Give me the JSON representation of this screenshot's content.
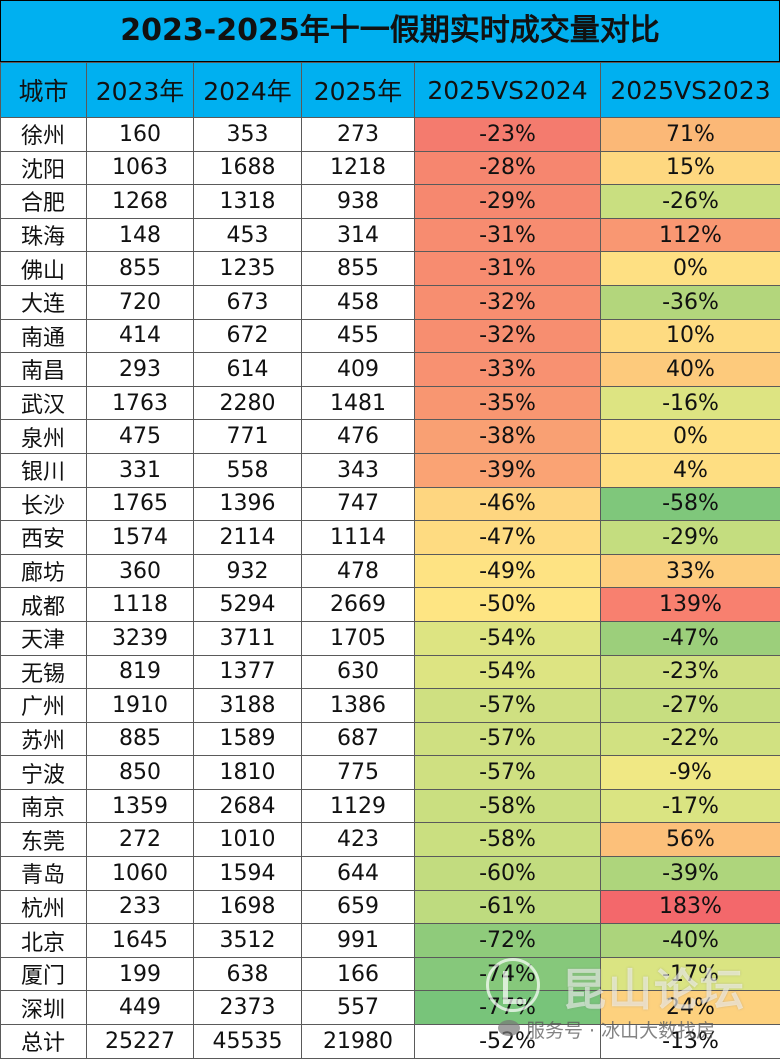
{
  "title": "2023-2025年十一假期实时成交量对比",
  "headers": [
    "城市",
    "2023年",
    "2024年",
    "2025年",
    "2025VS2024",
    "2025VS2023"
  ],
  "rows": [
    {
      "city": "徐州",
      "y2023": "160",
      "y2024": "353",
      "y2025": "273",
      "vs2024": "-23%",
      "vs2023": "71%",
      "c2024": "#f47b6e",
      "c2023": "#fbb877"
    },
    {
      "city": "沈阳",
      "y2023": "1063",
      "y2024": "1688",
      "y2025": "1218",
      "vs2024": "-28%",
      "vs2023": "15%",
      "c2024": "#f6866f",
      "c2023": "#fed880"
    },
    {
      "city": "合肥",
      "y2023": "1268",
      "y2024": "1318",
      "y2025": "938",
      "vs2024": "-29%",
      "vs2023": "-26%",
      "c2024": "#f6886f",
      "c2023": "#c9df80"
    },
    {
      "city": "珠海",
      "y2023": "148",
      "y2024": "453",
      "y2025": "314",
      "vs2024": "-31%",
      "vs2023": "112%",
      "c2024": "#f78c70",
      "c2023": "#f99772"
    },
    {
      "city": "佛山",
      "y2023": "855",
      "y2024": "1235",
      "y2025": "855",
      "vs2024": "-31%",
      "vs2023": "0%",
      "c2024": "#f78c70",
      "c2023": "#fee083"
    },
    {
      "city": "大连",
      "y2023": "720",
      "y2024": "673",
      "y2025": "458",
      "vs2024": "-32%",
      "vs2023": "-36%",
      "c2024": "#f78e70",
      "c2023": "#b3d67c"
    },
    {
      "city": "南通",
      "y2023": "414",
      "y2024": "672",
      "y2025": "455",
      "vs2024": "-32%",
      "vs2023": "10%",
      "c2024": "#f78e70",
      "c2023": "#fedb81"
    },
    {
      "city": "南昌",
      "y2023": "293",
      "y2024": "614",
      "y2025": "409",
      "vs2024": "-33%",
      "vs2023": "40%",
      "c2024": "#f89171",
      "c2023": "#fdca7c"
    },
    {
      "city": "武汉",
      "y2023": "1763",
      "y2024": "2280",
      "y2025": "1481",
      "vs2024": "-35%",
      "vs2023": "-16%",
      "c2024": "#f89671",
      "c2023": "#dde482"
    },
    {
      "city": "泉州",
      "y2023": "475",
      "y2024": "771",
      "y2025": "476",
      "vs2024": "-38%",
      "vs2023": "0%",
      "c2024": "#f9a073",
      "c2023": "#fee083"
    },
    {
      "city": "银川",
      "y2023": "331",
      "y2024": "558",
      "y2025": "343",
      "vs2024": "-39%",
      "vs2023": "4%",
      "c2024": "#faa374",
      "c2023": "#fede82"
    },
    {
      "city": "长沙",
      "y2023": "1765",
      "y2024": "1396",
      "y2025": "747",
      "vs2024": "-46%",
      "vs2023": "-58%",
      "c2024": "#fed680",
      "c2023": "#7fc77b"
    },
    {
      "city": "西安",
      "y2023": "1574",
      "y2024": "2114",
      "y2025": "1114",
      "vs2024": "-47%",
      "vs2023": "-29%",
      "c2024": "#fedb81",
      "c2023": "#c4dd7f"
    },
    {
      "city": "廊坊",
      "y2023": "360",
      "y2024": "932",
      "y2025": "478",
      "vs2024": "-49%",
      "vs2023": "33%",
      "c2024": "#fee383",
      "c2023": "#fdcd7d"
    },
    {
      "city": "成都",
      "y2023": "1118",
      "y2024": "5294",
      "y2025": "2669",
      "vs2024": "-50%",
      "vs2023": "139%",
      "c2024": "#fee583",
      "c2023": "#f8806f"
    },
    {
      "city": "天津",
      "y2023": "3239",
      "y2024": "3711",
      "y2025": "1705",
      "vs2024": "-54%",
      "vs2023": "-47%",
      "c2024": "#dde482",
      "c2023": "#9ccf7b"
    },
    {
      "city": "无锡",
      "y2023": "819",
      "y2024": "1377",
      "y2025": "630",
      "vs2024": "-54%",
      "vs2023": "-23%",
      "c2024": "#dde482",
      "c2023": "#cfe081"
    },
    {
      "city": "广州",
      "y2023": "1910",
      "y2024": "3188",
      "y2025": "1386",
      "vs2024": "-57%",
      "vs2023": "-27%",
      "c2024": "#cfe081",
      "c2023": "#c7de80"
    },
    {
      "city": "苏州",
      "y2023": "885",
      "y2024": "1589",
      "y2025": "687",
      "vs2024": "-57%",
      "vs2023": "-22%",
      "c2024": "#cfe081",
      "c2023": "#d1e181"
    },
    {
      "city": "宁波",
      "y2023": "850",
      "y2024": "1810",
      "y2025": "775",
      "vs2024": "-57%",
      "vs2023": "-9%",
      "c2024": "#cfe081",
      "c2023": "#f0e884"
    },
    {
      "city": "南京",
      "y2023": "1359",
      "y2024": "2684",
      "y2025": "1129",
      "vs2024": "-58%",
      "vs2023": "-17%",
      "c2024": "#cadf80",
      "c2023": "#dae482"
    },
    {
      "city": "东莞",
      "y2023": "272",
      "y2024": "1010",
      "y2025": "423",
      "vs2024": "-58%",
      "vs2023": "56%",
      "c2024": "#cadf80",
      "c2023": "#fcc07a"
    },
    {
      "city": "青岛",
      "y2023": "1060",
      "y2024": "1594",
      "y2025": "644",
      "vs2024": "-60%",
      "vs2023": "-39%",
      "c2024": "#c2dc7f",
      "c2023": "#aed57c"
    },
    {
      "city": "杭州",
      "y2023": "233",
      "y2024": "1698",
      "y2025": "659",
      "vs2024": "-61%",
      "vs2023": "183%",
      "c2024": "#bedb7f",
      "c2023": "#f3686b"
    },
    {
      "city": "北京",
      "y2023": "1645",
      "y2024": "3512",
      "y2025": "991",
      "vs2024": "-72%",
      "vs2023": "-40%",
      "c2024": "#8fcb7b",
      "c2023": "#acd47c"
    },
    {
      "city": "厦门",
      "y2023": "199",
      "y2024": "638",
      "y2025": "166",
      "vs2024": "-74%",
      "vs2023": "-17%",
      "c2024": "#86c87b",
      "c2023": "#dae482"
    },
    {
      "city": "深圳",
      "y2023": "449",
      "y2024": "2373",
      "y2025": "557",
      "vs2024": "-77%",
      "vs2023": "24%",
      "c2024": "#78c47a",
      "c2023": "#fdd17e"
    },
    {
      "city": "总计",
      "y2023": "25227",
      "y2024": "45535",
      "y2025": "21980",
      "vs2024": "-52%",
      "vs2023": "-13%",
      "c2024": "#ffffff",
      "c2023": "#ffffff"
    }
  ],
  "watermark": {
    "brand": "昆山论坛",
    "caption": "服务号 · 冰山大数找房"
  },
  "colors": {
    "header_bg": "#00b0f0"
  }
}
